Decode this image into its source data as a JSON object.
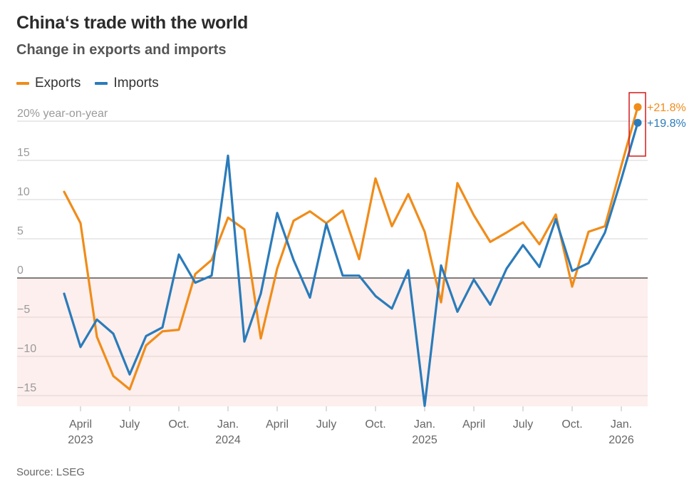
{
  "title": "China‘s trade with the world",
  "subtitle": "Change in exports and imports",
  "source": "Source: LSEG",
  "chart_data": {
    "type": "line",
    "ylabel": "20% year-on-year",
    "ylim": [
      -16,
      20
    ],
    "yticks": [
      20,
      15,
      10,
      5,
      0,
      -5,
      -10,
      -15
    ],
    "ytick_labels": [
      "20% year-on-year",
      "15",
      "10",
      "5",
      "0",
      "−5",
      "−10",
      "−15"
    ],
    "xticks": [
      {
        "index": 1,
        "month": "April",
        "year": "2023"
      },
      {
        "index": 4,
        "month": "July",
        "year": ""
      },
      {
        "index": 7,
        "month": "Oct.",
        "year": ""
      },
      {
        "index": 10,
        "month": "Jan.",
        "year": "2024"
      },
      {
        "index": 13,
        "month": "April",
        "year": ""
      },
      {
        "index": 16,
        "month": "July",
        "year": ""
      },
      {
        "index": 19,
        "month": "Oct.",
        "year": ""
      },
      {
        "index": 22,
        "month": "Jan.",
        "year": "2025"
      },
      {
        "index": 25,
        "month": "April",
        "year": ""
      },
      {
        "index": 28,
        "month": "July",
        "year": ""
      },
      {
        "index": 31,
        "month": "Oct.",
        "year": ""
      },
      {
        "index": 34,
        "month": "Jan.",
        "year": "2026"
      }
    ],
    "series": [
      {
        "name": "Exports",
        "color": "#f08c1a",
        "values": [
          11.0,
          7.0,
          -7.5,
          -12.5,
          -14.2,
          -8.6,
          -6.8,
          -6.6,
          0.5,
          2.3,
          7.7,
          6.2,
          -7.7,
          1.2,
          7.3,
          8.5,
          7.0,
          8.6,
          2.4,
          12.7,
          6.6,
          10.7,
          5.9,
          -3.1,
          12.1,
          8.0,
          4.6,
          5.8,
          7.1,
          4.3,
          8.1,
          -1.1,
          5.9,
          6.6,
          14.3,
          21.8
        ],
        "end_label": "+21.8%"
      },
      {
        "name": "Imports",
        "color": "#2b7bba",
        "values": [
          -2.0,
          -8.8,
          -5.3,
          -7.1,
          -12.3,
          -7.4,
          -6.3,
          3.0,
          -0.6,
          0.3,
          15.6,
          -8.1,
          -2.0,
          8.3,
          2.3,
          -2.5,
          6.9,
          0.3,
          0.3,
          -2.3,
          -3.9,
          1.0,
          -16.3,
          1.6,
          -4.3,
          -0.2,
          -3.4,
          1.2,
          4.2,
          1.4,
          7.5,
          0.9,
          1.9,
          5.8,
          12.6,
          19.8
        ],
        "end_label": "+19.8%"
      }
    ]
  }
}
